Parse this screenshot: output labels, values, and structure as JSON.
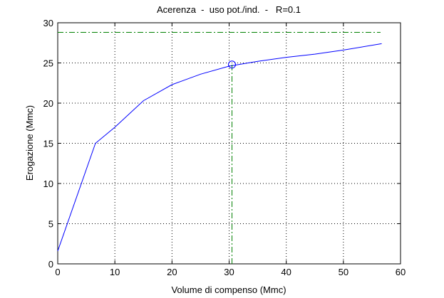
{
  "chart_data": {
    "type": "line",
    "title": "Acerenza  -  uso pot./ind.  -   R=0.1",
    "xlabel": "Volume di compenso (Mmc)",
    "ylabel": "Erogazione (Mmc)",
    "xlim": [
      0,
      60
    ],
    "xticks": [
      0,
      10,
      20,
      30,
      40,
      50,
      60
    ],
    "ylim": [
      0,
      30
    ],
    "yticks": [
      0,
      5,
      10,
      15,
      20,
      25,
      30
    ],
    "grid": true,
    "series": [
      {
        "color": "#0000ff",
        "style": "solid",
        "x": [
          0,
          6.6,
          10,
          15,
          20,
          25,
          30,
          35,
          40,
          45,
          50,
          56.7
        ],
        "values": [
          1.6,
          15,
          17.0,
          20.3,
          22.3,
          23.6,
          24.6,
          25.2,
          25.7,
          26.1,
          26.6,
          27.4
        ]
      },
      {
        "color": "#008000",
        "style": "dashdot",
        "x": [
          0,
          56.5
        ],
        "values": [
          28.8,
          28.8
        ]
      },
      {
        "color": "#008000",
        "style": "dashdot",
        "x": [
          30.5,
          30.5
        ],
        "values": [
          0,
          24.8
        ]
      },
      {
        "color": "#0000ff",
        "style": "marker",
        "x": [
          30.5
        ],
        "values": [
          24.8
        ]
      }
    ]
  }
}
